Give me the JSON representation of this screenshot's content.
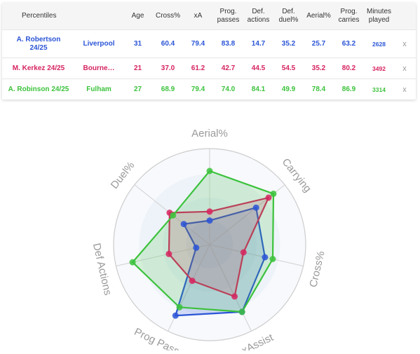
{
  "table": {
    "headers": {
      "name": "Percentiles",
      "age": "Age",
      "cross": "Cross%",
      "xa": "xA",
      "prog_passes": [
        "Prog.",
        "passes"
      ],
      "def_actions": [
        "Def.",
        "actions"
      ],
      "def_duel": [
        "Def.",
        "duel%"
      ],
      "aerial": "Aerial%",
      "prog_carries": [
        "Prog.",
        "carries"
      ],
      "minutes": [
        "Minutes",
        "played"
      ]
    },
    "rows": [
      {
        "name": [
          "A. Robertson",
          "24/25"
        ],
        "team": "Liverpool",
        "age": "31",
        "cross": "60.4",
        "xa": "79.4",
        "prog_passes": "83.8",
        "def_actions": "14.7",
        "def_duel": "35.2",
        "aerial": "25.7",
        "prog_carries": "63.2",
        "minutes": "2628",
        "remove": "x",
        "color": "#2b55d6"
      },
      {
        "name": [
          "M. Kerkez 24/25"
        ],
        "team": "Bourne…",
        "age": "21",
        "cross": "37.0",
        "xa": "61.2",
        "prog_passes": "42.7",
        "def_actions": "44.5",
        "def_duel": "54.5",
        "aerial": "35.2",
        "prog_carries": "80.2",
        "minutes": "3492",
        "remove": "x",
        "color": "#d6245f"
      },
      {
        "name": [
          "A. Robinson 24/25"
        ],
        "team": "Fulham",
        "age": "27",
        "cross": "68.9",
        "xa": "79.4",
        "prog_passes": "74.0",
        "def_actions": "84.1",
        "def_duel": "49.9",
        "aerial": "78.4",
        "prog_carries": "86.9",
        "minutes": "3314",
        "remove": "x",
        "color": "#3cc23c"
      }
    ]
  },
  "chart_data": {
    "type": "radar",
    "axes": [
      "Aerial%",
      "Carrying",
      "Cross%",
      "xAssist",
      "Prog Passes",
      "Def Actions",
      "Duel%"
    ],
    "range": [
      0,
      100
    ],
    "grid": true,
    "series": [
      {
        "name": "A. Robertson 24/25",
        "color": "#2b55d6",
        "values": [
          25.7,
          63.2,
          60.4,
          79.4,
          83.8,
          14.7,
          35.2
        ]
      },
      {
        "name": "M. Kerkez 24/25",
        "color": "#d6245f",
        "values": [
          35.2,
          80.2,
          37.0,
          61.2,
          42.7,
          44.5,
          54.5
        ]
      },
      {
        "name": "A. Robinson 24/25",
        "color": "#3cc23c",
        "values": [
          78.4,
          86.9,
          68.9,
          79.4,
          74.0,
          84.1,
          49.9
        ]
      }
    ]
  }
}
